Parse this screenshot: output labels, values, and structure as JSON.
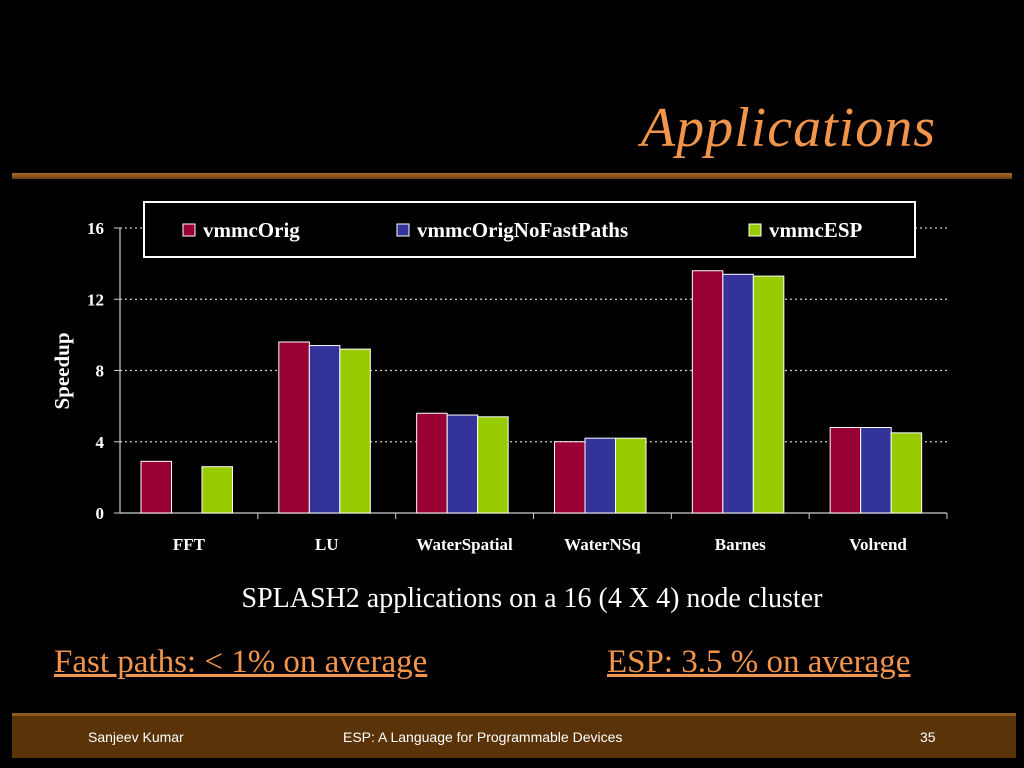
{
  "slide": {
    "title": "Applications",
    "caption": "SPLASH2 applications on a 16 (4 X 4) node cluster",
    "note_left": "Fast paths: < 1% on average",
    "note_right": "ESP: 3.5 % on average"
  },
  "footer": {
    "author": "Sanjeev Kumar",
    "title": "ESP: A Language for Programmable Devices",
    "page": "35"
  },
  "colors": {
    "title": "#F2954C",
    "background": "#000000",
    "footer": "#5A3308"
  },
  "chart_data": {
    "type": "bar",
    "ylabel": "Speedup",
    "xlabel": "",
    "ylim": [
      0,
      16
    ],
    "yticks": [
      0,
      4,
      8,
      12,
      16
    ],
    "grid": "dotted horizontal",
    "legend_position": "top",
    "categories": [
      "FFT",
      "LU",
      "WaterSpatial",
      "WaterNSq",
      "Barnes",
      "Volrend"
    ],
    "series": [
      {
        "name": "vmmcOrig",
        "color": "#990033",
        "values": [
          2.9,
          9.6,
          5.6,
          4.0,
          13.6,
          4.8
        ]
      },
      {
        "name": "vmmcOrigNoFastPaths",
        "color": "#333399",
        "values": [
          null,
          9.4,
          5.5,
          4.2,
          13.4,
          4.8
        ]
      },
      {
        "name": "vmmcESP",
        "color": "#99CC00",
        "values": [
          2.6,
          9.2,
          5.4,
          4.2,
          13.3,
          4.5
        ]
      }
    ]
  }
}
